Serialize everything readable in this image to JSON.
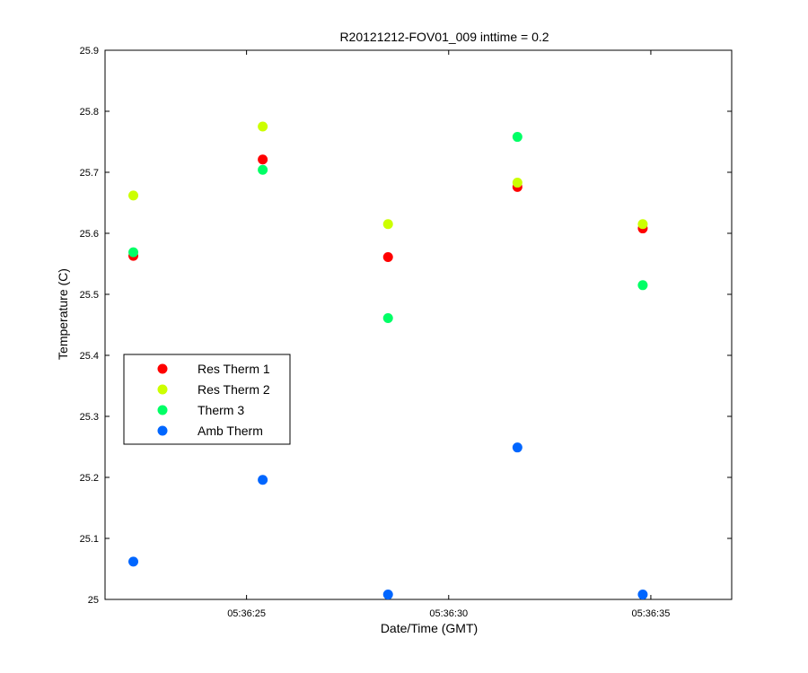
{
  "chart_data": {
    "type": "scatter",
    "title": "R20121212-FOV01_009 inttime = 0.2",
    "xlabel": "Date/Time (GMT)",
    "ylabel": "Temperature (C)",
    "xlim": [
      "05:36:21.5",
      "05:36:37"
    ],
    "ylim": [
      25,
      25.9
    ],
    "x_ticks": [
      "05:36:25",
      "05:36:30",
      "05:36:35"
    ],
    "y_ticks": [
      "25",
      "25.1",
      "25.2",
      "25.3",
      "25.4",
      "25.5",
      "25.6",
      "25.7",
      "25.8",
      "25.9"
    ],
    "grid": false,
    "legend_position": "middle-left",
    "x": [
      "05:36:22.2",
      "05:36:25.4",
      "05:36:28.5",
      "05:36:31.7",
      "05:36:34.8"
    ],
    "series": [
      {
        "name": "Res Therm 1",
        "color": "#ff0000",
        "values": [
          25.563,
          25.721,
          25.561,
          25.676,
          25.608
        ]
      },
      {
        "name": "Res Therm 2",
        "color": "#ccff00",
        "values": [
          25.662,
          25.775,
          25.615,
          25.683,
          25.615
        ]
      },
      {
        "name": "Therm 3",
        "color": "#00ff66",
        "values": [
          25.569,
          25.704,
          25.461,
          25.758,
          25.515
        ]
      },
      {
        "name": "Amb Therm",
        "color": "#0066ff",
        "values": [
          25.062,
          25.196,
          25.008,
          25.249,
          25.008
        ]
      }
    ]
  }
}
